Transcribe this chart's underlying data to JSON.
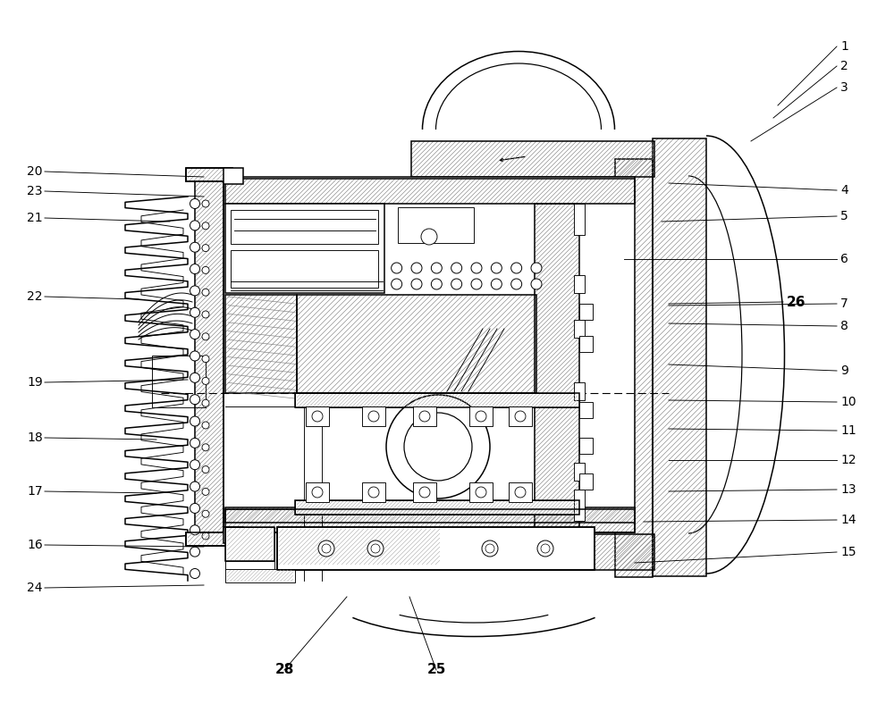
{
  "fig_width": 10.0,
  "fig_height": 7.97,
  "dpi": 100,
  "bg_color": "#ffffff",
  "lc": "#000000",
  "hc": "#888888",
  "lw": 1.1,
  "lt": 0.65,
  "fs": 10,
  "right_labels": {
    "1": [
      940,
      52,
      870,
      118
    ],
    "2": [
      940,
      74,
      865,
      132
    ],
    "3": [
      940,
      98,
      840,
      158
    ],
    "4": [
      940,
      213,
      748,
      205
    ],
    "5": [
      940,
      242,
      740,
      248
    ],
    "6": [
      940,
      290,
      698,
      290
    ],
    "7": [
      940,
      340,
      748,
      342
    ],
    "8": [
      940,
      365,
      748,
      362
    ],
    "9": [
      940,
      415,
      748,
      408
    ],
    "10": [
      940,
      450,
      748,
      448
    ],
    "11": [
      940,
      482,
      748,
      480
    ],
    "12": [
      940,
      515,
      748,
      515
    ],
    "13": [
      940,
      548,
      748,
      550
    ],
    "14": [
      940,
      582,
      720,
      584
    ],
    "15": [
      940,
      618,
      710,
      630
    ]
  },
  "left_labels": {
    "20": [
      30,
      192,
      228,
      198
    ],
    "23": [
      30,
      214,
      228,
      220
    ],
    "21": [
      30,
      244,
      190,
      248
    ],
    "22": [
      30,
      332,
      155,
      335
    ],
    "19": [
      30,
      428,
      210,
      425
    ],
    "18": [
      30,
      490,
      175,
      492
    ],
    "17": [
      30,
      550,
      175,
      552
    ],
    "16": [
      30,
      610,
      228,
      612
    ],
    "24": [
      30,
      658,
      228,
      655
    ]
  },
  "bold_labels": {
    "26": [
      880,
      338,
      748,
      340
    ],
    "28": [
      318,
      750,
      388,
      668
    ],
    "25": [
      488,
      750,
      458,
      668
    ]
  }
}
